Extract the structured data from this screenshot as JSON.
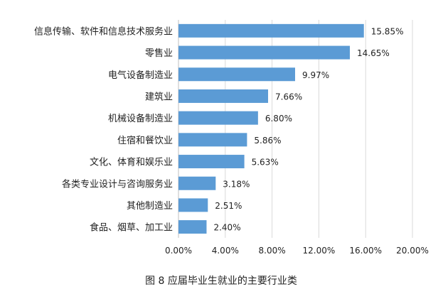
{
  "chart_data": {
    "type": "bar",
    "orientation": "horizontal",
    "categories": [
      "信息传输、软件和信息技术服务业",
      "零售业",
      "电气设备制造业",
      "建筑业",
      "机械设备制造业",
      "住宿和餐饮业",
      "文化、体育和娱乐业",
      "各类专业设计与咨询服务业",
      "其他制造业",
      "食品、烟草、加工业"
    ],
    "values": [
      15.85,
      14.65,
      9.97,
      7.66,
      6.8,
      5.86,
      5.63,
      3.18,
      2.51,
      2.4
    ],
    "value_labels": [
      "15.85%",
      "14.65%",
      "9.97%",
      "7.66%",
      "6.80%",
      "5.86%",
      "5.63%",
      "3.18%",
      "2.51%",
      "2.40%"
    ],
    "xlim": [
      0,
      20
    ],
    "xticks": [
      0,
      4,
      8,
      12,
      16,
      20
    ],
    "xtick_labels": [
      "0.00%",
      "4.00%",
      "8.00%",
      "12.00%",
      "16.00%",
      "20.00%"
    ],
    "grid": true,
    "bar_color": "#5b9bd5",
    "title": "图 8  应届毕业生就业的主要行业类"
  }
}
